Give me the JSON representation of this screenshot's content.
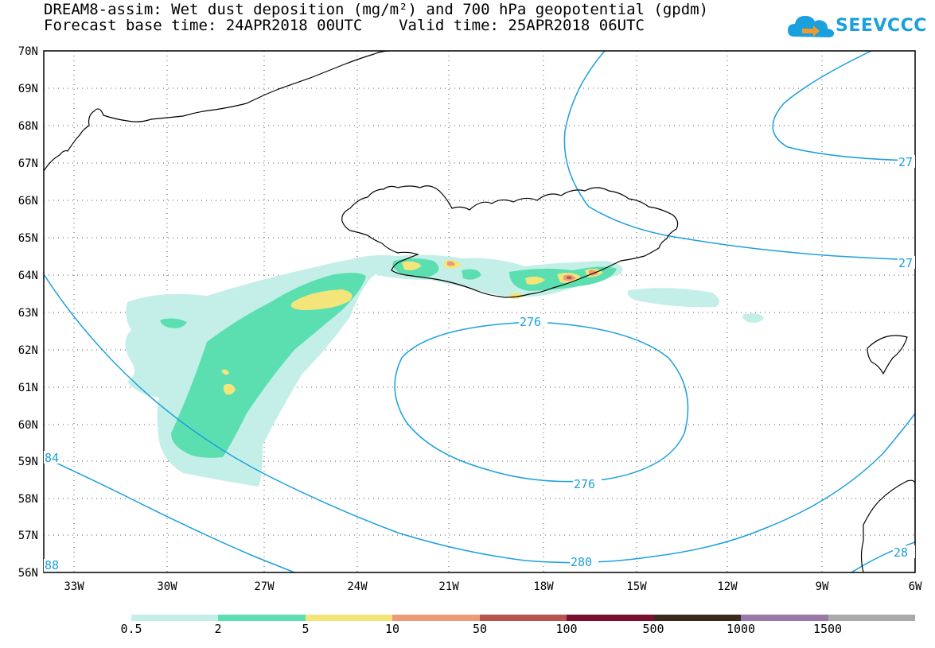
{
  "title_line1": "DREAM8-assim: Wet dust deposition (mg/m²) and 700 hPa geopotential (gpdm)",
  "title_line2": "Forecast base time: 24APR2018 00UTC    Valid time: 25APR2018 06UTC",
  "logo_text": "SEEVCCC",
  "logo_icon": "cloud-arrow-icon",
  "lat_labels": [
    "70N",
    "69N",
    "68N",
    "67N",
    "66N",
    "65N",
    "64N",
    "63N",
    "62N",
    "61N",
    "60N",
    "59N",
    "58N",
    "57N",
    "56N"
  ],
  "lon_labels": [
    "33W",
    "30W",
    "27W",
    "24W",
    "21W",
    "18W",
    "15W",
    "12W",
    "9W",
    "6W"
  ],
  "contour_labels": {
    "c276_top": "276",
    "c276_bottom": "276",
    "c280": "280",
    "c284": "84",
    "c288": "88",
    "c27_upper": "27",
    "c27_lower": "27",
    "c28_right": "28"
  },
  "colors": {
    "contour": "#1aa0dc",
    "level_0_5": "#c4efe8",
    "level_2": "#5cdfb0",
    "level_5": "#f4e57a",
    "level_10": "#ee9a78",
    "level_50": "#b85450",
    "level_100": "#7a1030",
    "level_500": "#3a2a20",
    "level_1000": "#9a78a8",
    "level_1500": "#aaaaaa"
  },
  "legend": {
    "colors": [
      "#c4efe8",
      "#5cdfb0",
      "#f4e57a",
      "#ee9a78",
      "#b85450",
      "#7a1030",
      "#3a2a20",
      "#9a78a8",
      "#aaaaaa"
    ],
    "labels": [
      "0.5",
      "2",
      "5",
      "10",
      "50",
      "100",
      "500",
      "1000",
      "1500"
    ]
  }
}
